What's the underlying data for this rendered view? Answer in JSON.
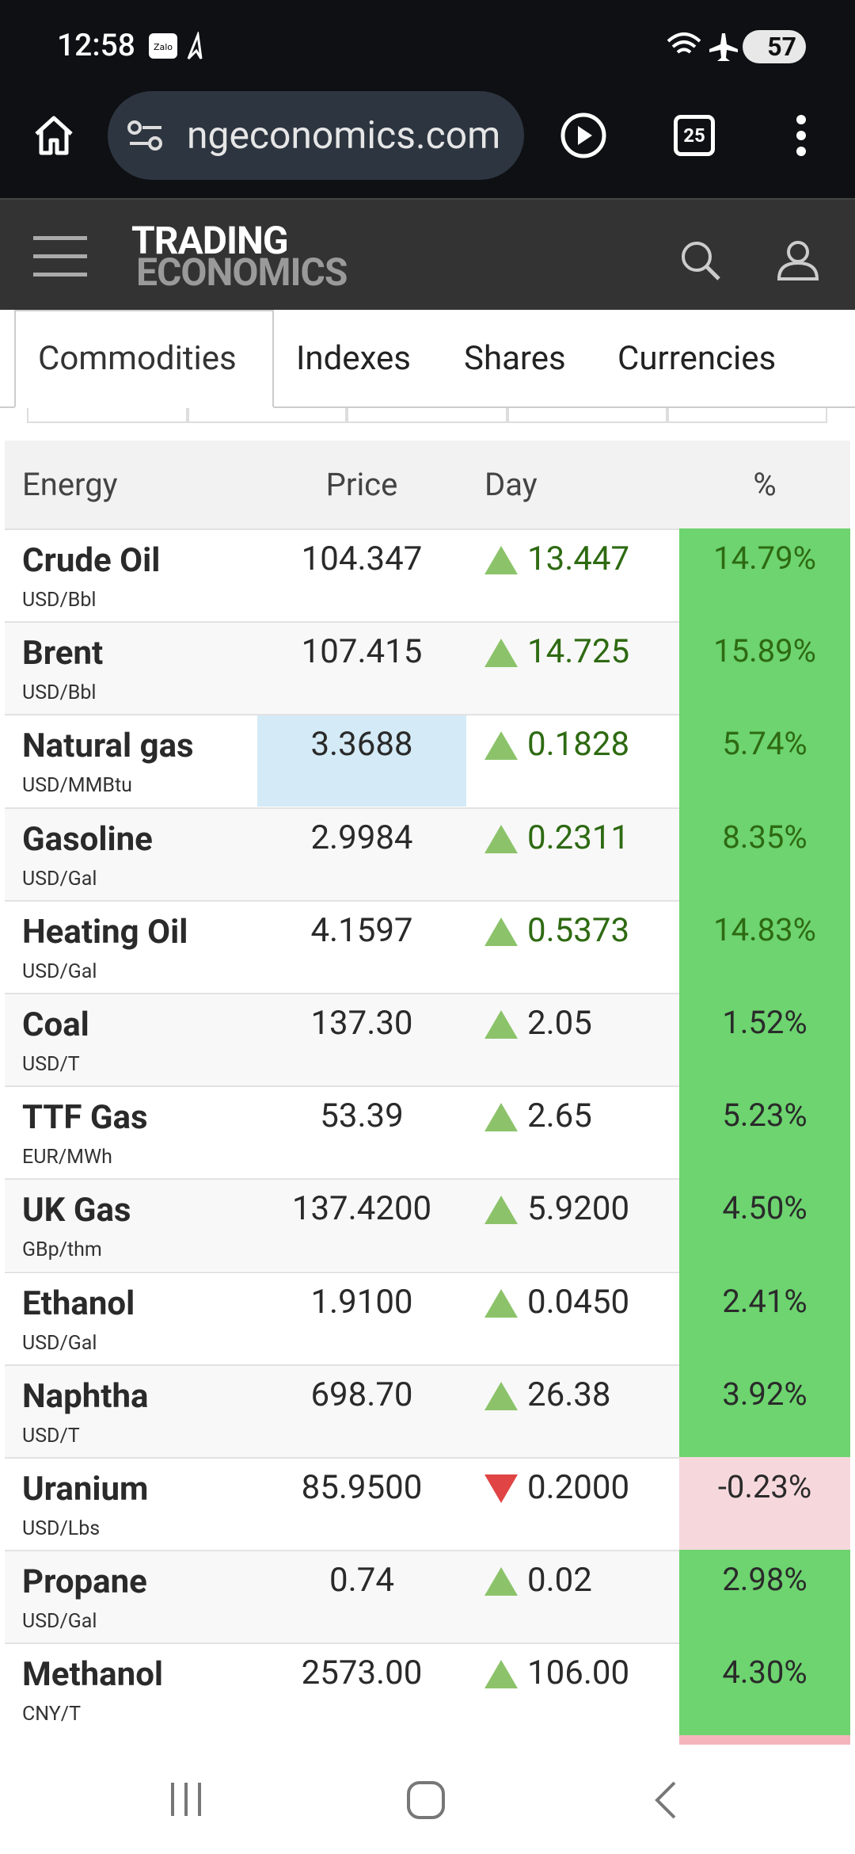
{
  "status": {
    "time": "12:58",
    "battery": "57"
  },
  "browser": {
    "url": "ngeconomics.com",
    "tabs_count": "25"
  },
  "site": {
    "logo_top": "TRADING",
    "logo_bottom": "ECONOMICS"
  },
  "tabs": [
    "Commodities",
    "Indexes",
    "Shares",
    "Currencies"
  ],
  "table": {
    "headers": [
      "Energy",
      "Price",
      "Day",
      "%"
    ],
    "rows": [
      {
        "name": "Crude Oil",
        "unit": "USD/Bbl",
        "price": "104.347",
        "change": "13.447",
        "direction": "up",
        "percent": "14.79%"
      },
      {
        "name": "Brent",
        "unit": "USD/Bbl",
        "price": "107.415",
        "change": "14.725",
        "direction": "up",
        "percent": "15.89%"
      },
      {
        "name": "Natural gas",
        "unit": "USD/MMBtu",
        "price": "3.3688",
        "change": "0.1828",
        "direction": "up",
        "percent": "5.74%"
      },
      {
        "name": "Gasoline",
        "unit": "USD/Gal",
        "price": "2.9984",
        "change": "0.2311",
        "direction": "up",
        "percent": "8.35%"
      },
      {
        "name": "Heating Oil",
        "unit": "USD/Gal",
        "price": "4.1597",
        "change": "0.5373",
        "direction": "up",
        "percent": "14.83%"
      },
      {
        "name": "Coal",
        "unit": "USD/T",
        "price": "137.30",
        "change": "2.05",
        "direction": "up",
        "percent": "1.52%"
      },
      {
        "name": "TTF Gas",
        "unit": "EUR/MWh",
        "price": "53.39",
        "change": "2.65",
        "direction": "up",
        "percent": "5.23%"
      },
      {
        "name": "UK Gas",
        "unit": "GBp/thm",
        "price": "137.4200",
        "change": "5.9200",
        "direction": "up",
        "percent": "4.50%"
      },
      {
        "name": "Ethanol",
        "unit": "USD/Gal",
        "price": "1.9100",
        "change": "0.0450",
        "direction": "up",
        "percent": "2.41%"
      },
      {
        "name": "Naphtha",
        "unit": "USD/T",
        "price": "698.70",
        "change": "26.38",
        "direction": "up",
        "percent": "3.92%"
      },
      {
        "name": "Uranium",
        "unit": "USD/Lbs",
        "price": "85.9500",
        "change": "0.2000",
        "direction": "down",
        "percent": "-0.23%"
      },
      {
        "name": "Propane",
        "unit": "USD/Gal",
        "price": "0.74",
        "change": "0.02",
        "direction": "up",
        "percent": "2.98%"
      },
      {
        "name": "Methanol",
        "unit": "CNY/T",
        "price": "2573.00",
        "change": "106.00",
        "direction": "up",
        "percent": "4.30%"
      }
    ]
  }
}
